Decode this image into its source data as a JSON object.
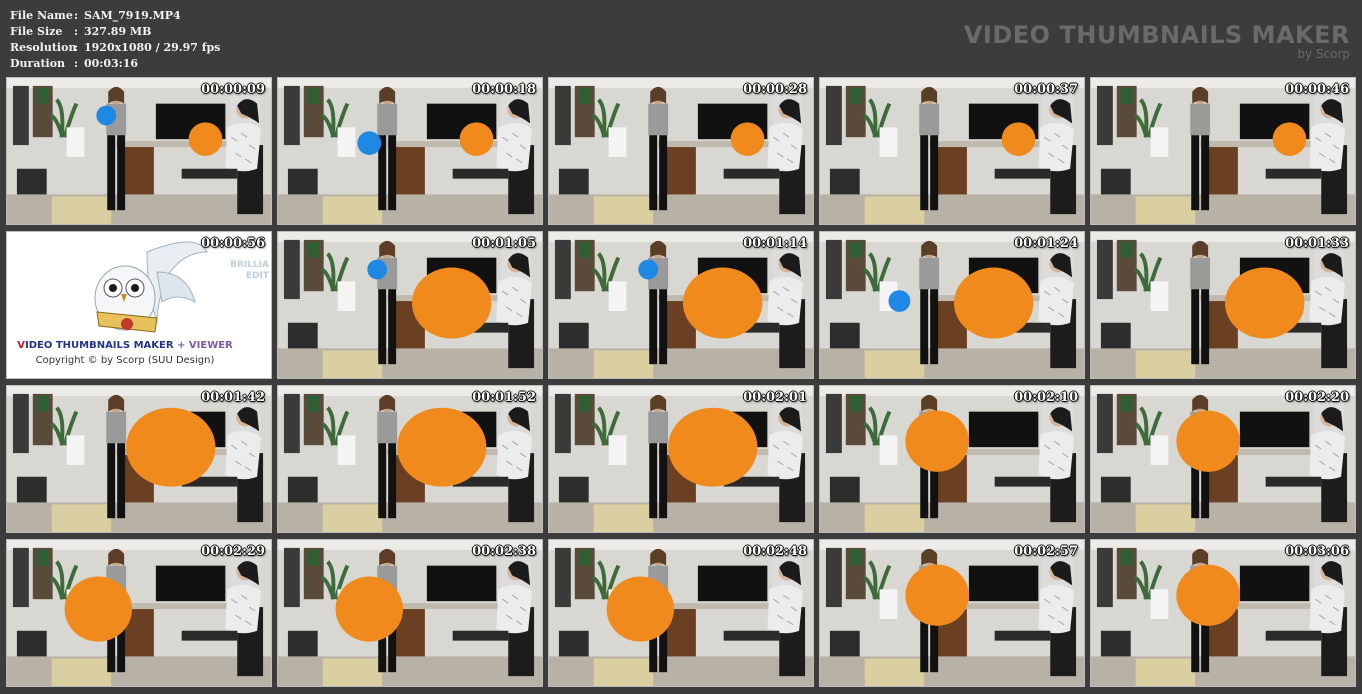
{
  "file_info": {
    "rows": [
      {
        "key": "File Name",
        "sep": ":",
        "value": "SAM_7919.MP4"
      },
      {
        "key": "File Size",
        "sep": ":",
        "value": "327.89 MB"
      },
      {
        "key": "Resolution",
        "sep": ":",
        "value": "1920x1080 / 29.97 fps"
      },
      {
        "key": "Duration",
        "sep": ":",
        "value": "00:03:16"
      }
    ]
  },
  "brand": {
    "title": "VIDEO THUMBNAILS MAKER",
    "subtitle": "by Scorp"
  },
  "splash": {
    "title_v": "V",
    "title_main": "IDEO THUMBNAILS MAKER ",
    "title_plus": "+ VIEWER",
    "copyright": "Copyright © by Scorp (SUU Design)",
    "side_line1": "BRILLIA",
    "side_line2": "EDIT"
  },
  "thumbnails": [
    {
      "time": "00:00:09",
      "balloon": "small",
      "blue": "mouth"
    },
    {
      "time": "00:00:18",
      "balloon": "small",
      "blue": "hand"
    },
    {
      "time": "00:00:28",
      "balloon": "small",
      "blue": "none"
    },
    {
      "time": "00:00:37",
      "balloon": "small",
      "blue": "none"
    },
    {
      "time": "00:00:46",
      "balloon": "small",
      "blue": "none"
    },
    {
      "time": "00:00:56",
      "splash": true
    },
    {
      "time": "00:01:05",
      "balloon": "medium",
      "blue": "mouth"
    },
    {
      "time": "00:01:14",
      "balloon": "medium",
      "blue": "mouth"
    },
    {
      "time": "00:01:24",
      "balloon": "medium",
      "blue": "low"
    },
    {
      "time": "00:01:33",
      "balloon": "medium",
      "blue": "none"
    },
    {
      "time": "00:01:42",
      "balloon": "large",
      "blue": "none"
    },
    {
      "time": "00:01:52",
      "balloon": "large",
      "blue": "none"
    },
    {
      "time": "00:02:01",
      "balloon": "large",
      "blue": "none"
    },
    {
      "time": "00:02:10",
      "balloon": "front",
      "blue": "none"
    },
    {
      "time": "00:02:20",
      "balloon": "front",
      "blue": "none"
    },
    {
      "time": "00:02:29",
      "balloon": "held",
      "blue": "none"
    },
    {
      "time": "00:02:38",
      "balloon": "held",
      "blue": "none"
    },
    {
      "time": "00:02:48",
      "balloon": "held",
      "blue": "none"
    },
    {
      "time": "00:02:57",
      "balloon": "front",
      "blue": "none"
    },
    {
      "time": "00:03:06",
      "balloon": "front",
      "blue": "none"
    }
  ],
  "colors": {
    "background": "#3c3c3c",
    "balloon": "#f08a1c",
    "blue_balloon": "#1e88e5"
  }
}
